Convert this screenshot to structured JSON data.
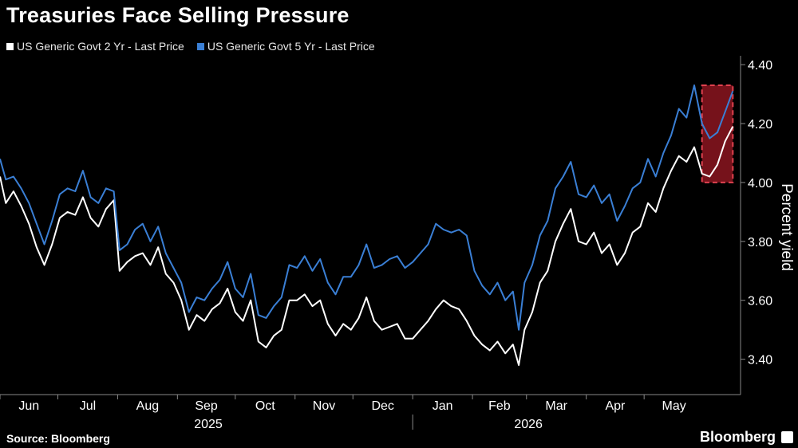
{
  "title": "Treasuries Face Selling Pressure",
  "source": "Source: Bloomberg",
  "brand": "Bloomberg",
  "brand_icon": "bloomberg-logo-icon",
  "colors": {
    "background": "#000000",
    "series_2yr": "#ffffff",
    "series_5yr": "#3a7fd5",
    "highlight_fill": "#8b1520",
    "highlight_stroke": "#e0414f",
    "axis": "#888888"
  },
  "chart_data": {
    "type": "line",
    "title": "Treasuries Face Selling Pressure",
    "xlabel": "",
    "ylabel": "Percent yield",
    "ylim": [
      3.28,
      4.43
    ],
    "y_ticks": [
      "3.40",
      "3.60",
      "3.80",
      "4.00",
      "4.20",
      "4.40"
    ],
    "y_tick_values": [
      3.4,
      3.6,
      3.8,
      4.0,
      4.2,
      4.4
    ],
    "x_start": "2025-06-01",
    "x_end": "2026-06-20",
    "x_tick_labels": [
      "Jun",
      "Jul",
      "Aug",
      "Sep",
      "Oct",
      "Nov",
      "Dec",
      "Jan",
      "Feb",
      "Mar",
      "Apr",
      "May"
    ],
    "x_tick_dates": [
      "2025-06-01",
      "2025-07-01",
      "2025-08-01",
      "2025-09-01",
      "2025-10-01",
      "2025-11-01",
      "2025-12-01",
      "2026-01-01",
      "2026-02-01",
      "2026-03-01",
      "2026-04-01",
      "2026-05-01"
    ],
    "year_labels": [
      {
        "label": "2025",
        "date": "2025-09-17"
      },
      {
        "label": "2026",
        "date": "2026-03-02"
      }
    ],
    "year_divider_date": "2026-01-01",
    "highlight": {
      "x_start": "2026-05-31",
      "x_end": "2026-06-16",
      "y_start": 4.0,
      "y_end": 4.33
    },
    "grid": false,
    "legend_position": "top-left",
    "series": [
      {
        "name": "US Generic Govt 2 Yr - Last Price",
        "color": "#ffffff",
        "points": [
          [
            "2025-06-01",
            4.02
          ],
          [
            "2025-06-04",
            3.93
          ],
          [
            "2025-06-08",
            3.97
          ],
          [
            "2025-06-12",
            3.92
          ],
          [
            "2025-06-16",
            3.86
          ],
          [
            "2025-06-20",
            3.78
          ],
          [
            "2025-06-24",
            3.72
          ],
          [
            "2025-06-28",
            3.79
          ],
          [
            "2025-07-02",
            3.88
          ],
          [
            "2025-07-06",
            3.9
          ],
          [
            "2025-07-10",
            3.89
          ],
          [
            "2025-07-14",
            3.95
          ],
          [
            "2025-07-18",
            3.88
          ],
          [
            "2025-07-22",
            3.85
          ],
          [
            "2025-07-26",
            3.91
          ],
          [
            "2025-07-30",
            3.94
          ],
          [
            "2025-08-02",
            3.7
          ],
          [
            "2025-08-06",
            3.73
          ],
          [
            "2025-08-10",
            3.75
          ],
          [
            "2025-08-14",
            3.76
          ],
          [
            "2025-08-18",
            3.72
          ],
          [
            "2025-08-22",
            3.78
          ],
          [
            "2025-08-26",
            3.69
          ],
          [
            "2025-08-30",
            3.66
          ],
          [
            "2025-09-03",
            3.6
          ],
          [
            "2025-09-07",
            3.5
          ],
          [
            "2025-09-11",
            3.55
          ],
          [
            "2025-09-15",
            3.53
          ],
          [
            "2025-09-19",
            3.57
          ],
          [
            "2025-09-23",
            3.59
          ],
          [
            "2025-09-27",
            3.64
          ],
          [
            "2025-10-01",
            3.56
          ],
          [
            "2025-10-05",
            3.53
          ],
          [
            "2025-10-09",
            3.6
          ],
          [
            "2025-10-13",
            3.46
          ],
          [
            "2025-10-17",
            3.44
          ],
          [
            "2025-10-21",
            3.48
          ],
          [
            "2025-10-25",
            3.5
          ],
          [
            "2025-10-29",
            3.6
          ],
          [
            "2025-11-02",
            3.6
          ],
          [
            "2025-11-06",
            3.62
          ],
          [
            "2025-11-10",
            3.58
          ],
          [
            "2025-11-14",
            3.6
          ],
          [
            "2025-11-18",
            3.52
          ],
          [
            "2025-11-22",
            3.48
          ],
          [
            "2025-11-26",
            3.52
          ],
          [
            "2025-11-30",
            3.5
          ],
          [
            "2025-12-04",
            3.54
          ],
          [
            "2025-12-08",
            3.61
          ],
          [
            "2025-12-12",
            3.53
          ],
          [
            "2025-12-16",
            3.5
          ],
          [
            "2025-12-20",
            3.51
          ],
          [
            "2025-12-24",
            3.52
          ],
          [
            "2025-12-28",
            3.47
          ],
          [
            "2026-01-01",
            3.47
          ],
          [
            "2026-01-05",
            3.5
          ],
          [
            "2026-01-09",
            3.53
          ],
          [
            "2026-01-13",
            3.57
          ],
          [
            "2026-01-17",
            3.6
          ],
          [
            "2026-01-21",
            3.58
          ],
          [
            "2026-01-25",
            3.57
          ],
          [
            "2026-01-29",
            3.53
          ],
          [
            "2026-02-02",
            3.48
          ],
          [
            "2026-02-06",
            3.45
          ],
          [
            "2026-02-10",
            3.43
          ],
          [
            "2026-02-14",
            3.46
          ],
          [
            "2026-02-18",
            3.42
          ],
          [
            "2026-02-22",
            3.45
          ],
          [
            "2026-02-25",
            3.38
          ],
          [
            "2026-02-28",
            3.5
          ],
          [
            "2026-03-04",
            3.56
          ],
          [
            "2026-03-08",
            3.66
          ],
          [
            "2026-03-12",
            3.7
          ],
          [
            "2026-03-16",
            3.8
          ],
          [
            "2026-03-20",
            3.86
          ],
          [
            "2026-03-24",
            3.91
          ],
          [
            "2026-03-28",
            3.8
          ],
          [
            "2026-04-01",
            3.79
          ],
          [
            "2026-04-05",
            3.83
          ],
          [
            "2026-04-09",
            3.76
          ],
          [
            "2026-04-13",
            3.79
          ],
          [
            "2026-04-17",
            3.72
          ],
          [
            "2026-04-21",
            3.76
          ],
          [
            "2026-04-25",
            3.83
          ],
          [
            "2026-04-29",
            3.85
          ],
          [
            "2026-05-03",
            3.93
          ],
          [
            "2026-05-07",
            3.9
          ],
          [
            "2026-05-11",
            3.98
          ],
          [
            "2026-05-15",
            4.04
          ],
          [
            "2026-05-19",
            4.09
          ],
          [
            "2026-05-23",
            4.07
          ],
          [
            "2026-05-27",
            4.12
          ],
          [
            "2026-05-31",
            4.03
          ],
          [
            "2026-06-04",
            4.02
          ],
          [
            "2026-06-08",
            4.06
          ],
          [
            "2026-06-12",
            4.14
          ],
          [
            "2026-06-16",
            4.19
          ]
        ]
      },
      {
        "name": "US Generic Govt 5 Yr - Last Price",
        "color": "#3a7fd5",
        "points": [
          [
            "2025-06-01",
            4.08
          ],
          [
            "2025-06-04",
            4.01
          ],
          [
            "2025-06-08",
            4.02
          ],
          [
            "2025-06-12",
            3.98
          ],
          [
            "2025-06-16",
            3.93
          ],
          [
            "2025-06-20",
            3.86
          ],
          [
            "2025-06-24",
            3.79
          ],
          [
            "2025-06-28",
            3.87
          ],
          [
            "2025-07-02",
            3.96
          ],
          [
            "2025-07-06",
            3.98
          ],
          [
            "2025-07-10",
            3.97
          ],
          [
            "2025-07-14",
            4.04
          ],
          [
            "2025-07-18",
            3.95
          ],
          [
            "2025-07-22",
            3.93
          ],
          [
            "2025-07-26",
            3.98
          ],
          [
            "2025-07-30",
            3.97
          ],
          [
            "2025-08-02",
            3.77
          ],
          [
            "2025-08-06",
            3.79
          ],
          [
            "2025-08-10",
            3.84
          ],
          [
            "2025-08-14",
            3.86
          ],
          [
            "2025-08-18",
            3.8
          ],
          [
            "2025-08-22",
            3.85
          ],
          [
            "2025-08-26",
            3.76
          ],
          [
            "2025-08-30",
            3.71
          ],
          [
            "2025-09-03",
            3.66
          ],
          [
            "2025-09-07",
            3.56
          ],
          [
            "2025-09-11",
            3.61
          ],
          [
            "2025-09-15",
            3.6
          ],
          [
            "2025-09-19",
            3.64
          ],
          [
            "2025-09-23",
            3.67
          ],
          [
            "2025-09-27",
            3.73
          ],
          [
            "2025-10-01",
            3.64
          ],
          [
            "2025-10-05",
            3.61
          ],
          [
            "2025-10-09",
            3.69
          ],
          [
            "2025-10-13",
            3.55
          ],
          [
            "2025-10-17",
            3.54
          ],
          [
            "2025-10-21",
            3.58
          ],
          [
            "2025-10-25",
            3.61
          ],
          [
            "2025-10-29",
            3.72
          ],
          [
            "2025-11-02",
            3.71
          ],
          [
            "2025-11-06",
            3.75
          ],
          [
            "2025-11-10",
            3.7
          ],
          [
            "2025-11-14",
            3.74
          ],
          [
            "2025-11-18",
            3.66
          ],
          [
            "2025-11-22",
            3.62
          ],
          [
            "2025-11-26",
            3.68
          ],
          [
            "2025-11-30",
            3.68
          ],
          [
            "2025-12-04",
            3.72
          ],
          [
            "2025-12-08",
            3.79
          ],
          [
            "2025-12-12",
            3.71
          ],
          [
            "2025-12-16",
            3.72
          ],
          [
            "2025-12-20",
            3.74
          ],
          [
            "2025-12-24",
            3.75
          ],
          [
            "2025-12-28",
            3.71
          ],
          [
            "2026-01-01",
            3.73
          ],
          [
            "2026-01-05",
            3.76
          ],
          [
            "2026-01-09",
            3.79
          ],
          [
            "2026-01-13",
            3.86
          ],
          [
            "2026-01-17",
            3.84
          ],
          [
            "2026-01-21",
            3.83
          ],
          [
            "2026-01-25",
            3.84
          ],
          [
            "2026-01-29",
            3.82
          ],
          [
            "2026-02-02",
            3.7
          ],
          [
            "2026-02-06",
            3.65
          ],
          [
            "2026-02-10",
            3.62
          ],
          [
            "2026-02-14",
            3.66
          ],
          [
            "2026-02-18",
            3.6
          ],
          [
            "2026-02-22",
            3.63
          ],
          [
            "2026-02-25",
            3.5
          ],
          [
            "2026-02-28",
            3.66
          ],
          [
            "2026-03-04",
            3.72
          ],
          [
            "2026-03-08",
            3.82
          ],
          [
            "2026-03-12",
            3.87
          ],
          [
            "2026-03-16",
            3.98
          ],
          [
            "2026-03-20",
            4.02
          ],
          [
            "2026-03-24",
            4.07
          ],
          [
            "2026-03-28",
            3.96
          ],
          [
            "2026-04-01",
            3.95
          ],
          [
            "2026-04-05",
            3.99
          ],
          [
            "2026-04-09",
            3.93
          ],
          [
            "2026-04-13",
            3.96
          ],
          [
            "2026-04-17",
            3.87
          ],
          [
            "2026-04-21",
            3.92
          ],
          [
            "2026-04-25",
            3.98
          ],
          [
            "2026-04-29",
            4.0
          ],
          [
            "2026-05-03",
            4.08
          ],
          [
            "2026-05-07",
            4.02
          ],
          [
            "2026-05-11",
            4.1
          ],
          [
            "2026-05-15",
            4.16
          ],
          [
            "2026-05-19",
            4.25
          ],
          [
            "2026-05-23",
            4.22
          ],
          [
            "2026-05-27",
            4.33
          ],
          [
            "2026-05-31",
            4.2
          ],
          [
            "2026-06-04",
            4.15
          ],
          [
            "2026-06-08",
            4.17
          ],
          [
            "2026-06-12",
            4.24
          ],
          [
            "2026-06-16",
            4.31
          ]
        ]
      }
    ]
  }
}
